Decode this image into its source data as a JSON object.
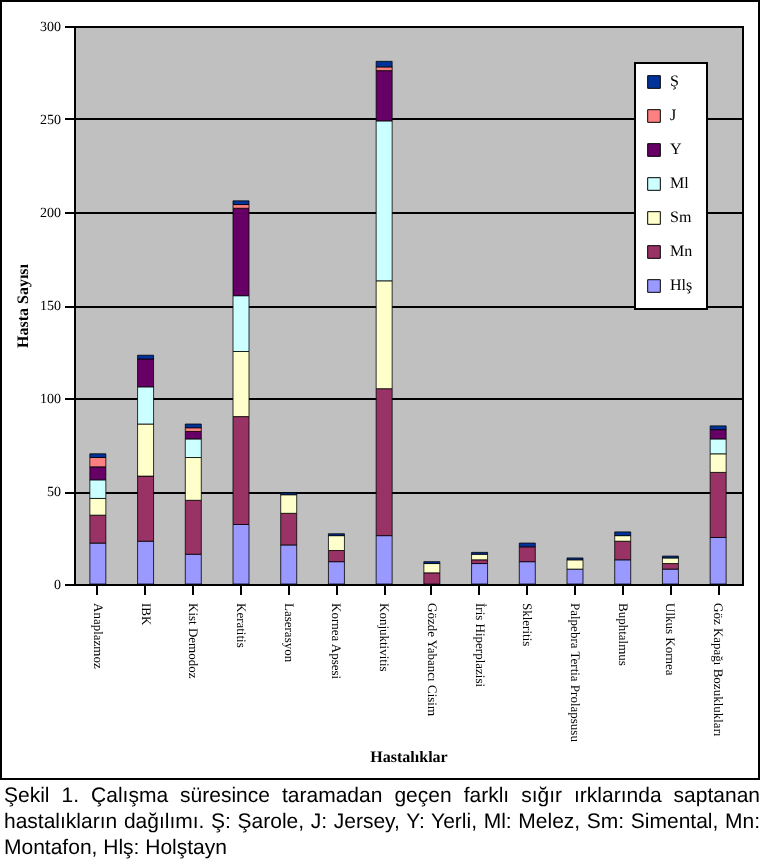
{
  "chart_data": {
    "type": "bar",
    "stacked": true,
    "xlabel": "Hastalıklar",
    "ylabel": "Hasta Sayısı",
    "categories": [
      "Anaplazmoz",
      "IBK",
      "Kist Demodoz",
      "Keratitis",
      "Laserasyon",
      "Kornea Apsesi",
      "Konjuktivitis",
      "Gözde Yabancı Cisim",
      "İris Hiperplazisi",
      "Skleritis",
      "Palpebra Tertia Prolapsusu",
      "Buphtalmus",
      "Ulkus Kornea",
      "Göz Kapağı Bozuklukları"
    ],
    "series": [
      {
        "name": "Hlş",
        "color": "#9999ff",
        "values": [
          22,
          23,
          16,
          32,
          21,
          12,
          26,
          0,
          11,
          12,
          8,
          13,
          8,
          25
        ]
      },
      {
        "name": "Mn",
        "color": "#993366",
        "values": [
          15,
          35,
          29,
          58,
          17,
          6,
          79,
          6,
          2,
          8,
          0,
          10,
          3,
          35
        ]
      },
      {
        "name": "Sm",
        "color": "#ffffcc",
        "values": [
          9,
          28,
          23,
          35,
          10,
          8,
          58,
          5,
          3,
          0,
          5,
          3,
          3,
          10
        ]
      },
      {
        "name": "Ml",
        "color": "#ccffff",
        "values": [
          10,
          20,
          10,
          30,
          0,
          0,
          86,
          0,
          0,
          0,
          0,
          0,
          0,
          8
        ]
      },
      {
        "name": "Y",
        "color": "#660066",
        "values": [
          7,
          15,
          4,
          47,
          0,
          0,
          27,
          0,
          0,
          0,
          0,
          0,
          0,
          5
        ]
      },
      {
        "name": "J",
        "color": "#ff8080",
        "values": [
          5,
          0,
          2,
          2,
          0,
          0,
          2,
          0,
          0,
          0,
          0,
          0,
          0,
          0
        ]
      },
      {
        "name": "Ş",
        "color": "#003399",
        "values": [
          2,
          2,
          2,
          2,
          1,
          1,
          3,
          1,
          1,
          2,
          1,
          2,
          1,
          2
        ]
      }
    ],
    "ylim": [
      0,
      300
    ],
    "yticks": [
      0,
      50,
      100,
      150,
      200,
      250,
      300
    ],
    "grid": "y",
    "legend": "top right",
    "annotations": [
      "Şekil 1. Çalışma süresince taramadan geçen farklı sığır ırklarında saptanan hastalıkların dağılımı. Ş: Şarole, J: Jersey, Y: Yerli, Ml: Melez, Sm: Simental, Mn: Montafon, Hlş: Holştayn"
    ]
  }
}
